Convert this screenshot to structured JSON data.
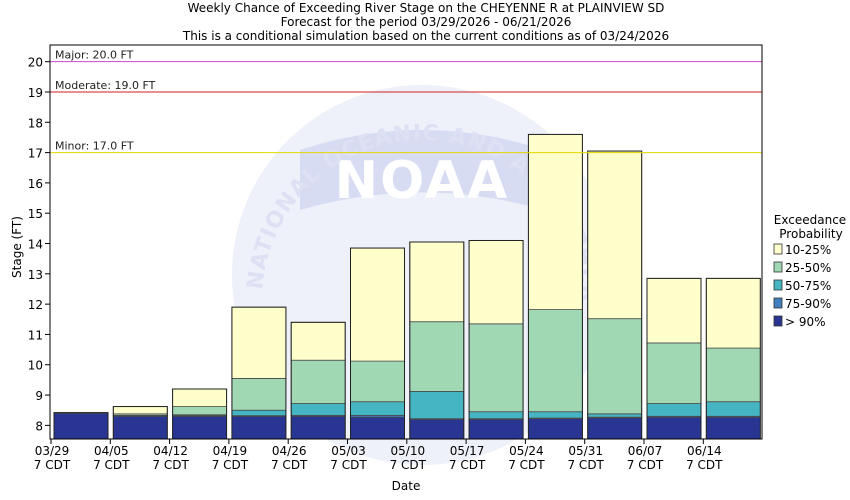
{
  "chart_data": {
    "type": "bar",
    "stacked": true,
    "title": [
      "Weekly Chance of Exceeding River Stage on the CHEYENNE R at PLAINVIEW SD",
      "Forecast for the period 03/29/2026 - 06/21/2026",
      "This is a conditional simulation based on the current conditions as of 03/24/2026"
    ],
    "xlabel": "Date",
    "ylabel": "Stage (FT)",
    "ylim": [
      7.55,
      20.55
    ],
    "yticks": [
      8,
      9,
      10,
      11,
      12,
      13,
      14,
      15,
      16,
      17,
      18,
      19,
      20
    ],
    "grid": false,
    "categories": [
      {
        "date": "03/29",
        "tz": "7 CDT"
      },
      {
        "date": "04/05",
        "tz": "7 CDT"
      },
      {
        "date": "04/12",
        "tz": "7 CDT"
      },
      {
        "date": "04/19",
        "tz": "7 CDT"
      },
      {
        "date": "04/26",
        "tz": "7 CDT"
      },
      {
        "date": "05/03",
        "tz": "7 CDT"
      },
      {
        "date": "05/10",
        "tz": "7 CDT"
      },
      {
        "date": "05/17",
        "tz": "7 CDT"
      },
      {
        "date": "05/24",
        "tz": "7 CDT"
      },
      {
        "date": "05/31",
        "tz": "7 CDT"
      },
      {
        "date": "06/07",
        "tz": "7 CDT"
      },
      {
        "date": "06/14",
        "tz": "7 CDT"
      }
    ],
    "base": 7.55,
    "series": [
      {
        "name": "> 90%",
        "color": "#283593",
        "tops": [
          8.4,
          8.3,
          8.3,
          8.3,
          8.3,
          8.27,
          8.2,
          8.2,
          8.22,
          8.25,
          8.27,
          8.27
        ]
      },
      {
        "name": "75-90%",
        "color": "#3f7fbf",
        "tops": [
          8.4,
          8.32,
          8.32,
          8.32,
          8.33,
          8.33,
          8.22,
          8.22,
          8.24,
          8.27,
          8.3,
          8.3
        ]
      },
      {
        "name": "50-75%",
        "color": "#45b5c4",
        "tops": [
          8.4,
          8.33,
          8.35,
          8.5,
          8.72,
          8.78,
          9.12,
          8.45,
          8.45,
          8.38,
          8.72,
          8.78
        ]
      },
      {
        "name": "25-50%",
        "color": "#a0d8b3",
        "tops": [
          8.4,
          8.38,
          8.62,
          9.55,
          10.15,
          10.12,
          11.42,
          11.35,
          11.82,
          11.52,
          10.72,
          10.55
        ]
      },
      {
        "name": "10-25%",
        "color": "#ffffcc",
        "tops": [
          8.42,
          8.62,
          9.2,
          11.9,
          11.4,
          13.85,
          14.05,
          14.1,
          17.6,
          17.05,
          12.85,
          12.85
        ]
      }
    ],
    "legend": {
      "title": [
        "Exceedance",
        "Probability"
      ],
      "position": "right",
      "entries": [
        {
          "label": "10-25%",
          "color": "#ffffcc"
        },
        {
          "label": "25-50%",
          "color": "#a0d8b3"
        },
        {
          "label": "50-75%",
          "color": "#45b5c4"
        },
        {
          "label": "75-90%",
          "color": "#3f7fbf"
        },
        {
          "label": "> 90%",
          "color": "#283593"
        }
      ]
    },
    "thresholds": [
      {
        "label": "Major: 20.0 FT",
        "value": 20.0,
        "color": "#cc44cc"
      },
      {
        "label": "Moderate: 19.0 FT",
        "value": 19.0,
        "color": "#cc2222"
      },
      {
        "label": "Minor: 17.0 FT",
        "value": 17.0,
        "color": "#e0d800"
      }
    ],
    "watermark": {
      "logo_text": "NOAA",
      "ring_text": "NATIONAL OCEANIC AND ATMOSPHERIC ADMINISTRATION"
    }
  }
}
